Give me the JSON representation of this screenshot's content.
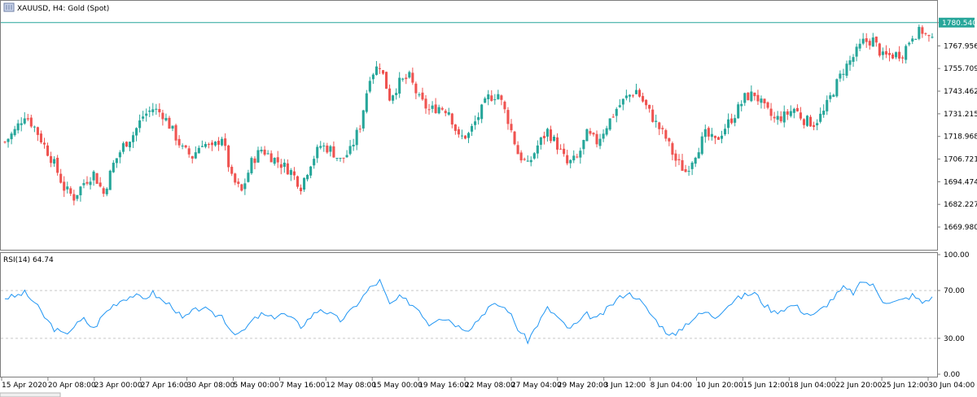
{
  "header": {
    "symbol_title": "XAUUSD, H4:  Gold (Spot)"
  },
  "rsi": {
    "label": "RSI(14) 64.74"
  },
  "colors": {
    "bull": "#26a69a",
    "bear": "#ef5350",
    "rsi_line": "#2196f3",
    "grid_level": "#c8c8c8",
    "current_price": "#26a69a"
  },
  "chart_data": [
    {
      "type": "candlestick",
      "title": "XAUUSD, H4:  Gold (Spot)",
      "ylim": [
        1659.0,
        1791.0
      ],
      "y_ticks": [
        "1780.540",
        "1767.956",
        "1755.709",
        "1743.462",
        "1731.215",
        "1718.968",
        "1706.721",
        "1694.474",
        "1682.227",
        "1669.980"
      ],
      "current_price": "1780.540",
      "x_ticks": [
        "15 Apr 2020",
        "20 Apr 08:00",
        "23 Apr 00:00",
        "27 Apr 16:00",
        "30 Apr 08:00",
        "5 May 00:00",
        "7 May 16:00",
        "12 May 08:00",
        "15 May 00:00",
        "19 May 16:00",
        "22 May 08:00",
        "27 May 04:00",
        "29 May 20:00",
        "3 Jun 12:00",
        "8 Jun 04:00",
        "10 Jun 20:00",
        "15 Jun 12:00",
        "18 Jun 04:00",
        "22 Jun 20:00",
        "25 Jun 12:00",
        "30 Jun 04:00"
      ],
      "close_path": [
        [
          0,
          1716
        ],
        [
          3,
          1722
        ],
        [
          6,
          1731
        ],
        [
          9,
          1724
        ],
        [
          12,
          1714
        ],
        [
          15,
          1704
        ],
        [
          18,
          1691
        ],
        [
          21,
          1686
        ],
        [
          24,
          1694
        ],
        [
          27,
          1699
        ],
        [
          30,
          1688
        ],
        [
          33,
          1704
        ],
        [
          36,
          1714
        ],
        [
          39,
          1720
        ],
        [
          42,
          1730
        ],
        [
          45,
          1734
        ],
        [
          48,
          1731
        ],
        [
          51,
          1722
        ],
        [
          54,
          1712
        ],
        [
          57,
          1708
        ],
        [
          60,
          1716
        ],
        [
          63,
          1712
        ],
        [
          66,
          1719
        ],
        [
          69,
          1696
        ],
        [
          72,
          1689
        ],
        [
          75,
          1705
        ],
        [
          78,
          1712
        ],
        [
          81,
          1708
        ],
        [
          84,
          1704
        ],
        [
          87,
          1700
        ],
        [
          90,
          1692
        ],
        [
          93,
          1705
        ],
        [
          96,
          1714
        ],
        [
          99,
          1712
        ],
        [
          102,
          1706
        ],
        [
          105,
          1711
        ],
        [
          108,
          1725
        ],
        [
          111,
          1752
        ],
        [
          114,
          1758
        ],
        [
          117,
          1740
        ],
        [
          120,
          1748
        ],
        [
          123,
          1751
        ],
        [
          126,
          1739
        ],
        [
          129,
          1733
        ],
        [
          132,
          1735
        ],
        [
          135,
          1733
        ],
        [
          138,
          1718
        ],
        [
          141,
          1720
        ],
        [
          144,
          1730
        ],
        [
          147,
          1740
        ],
        [
          150,
          1742
        ],
        [
          153,
          1728
        ],
        [
          156,
          1710
        ],
        [
          159,
          1703
        ],
        [
          162,
          1714
        ],
        [
          165,
          1722
        ],
        [
          168,
          1714
        ],
        [
          171,
          1704
        ],
        [
          174,
          1707
        ],
        [
          177,
          1720
        ],
        [
          180,
          1716
        ],
        [
          183,
          1725
        ],
        [
          186,
          1734
        ],
        [
          189,
          1740
        ],
        [
          192,
          1744
        ],
        [
          195,
          1735
        ],
        [
          198,
          1726
        ],
        [
          201,
          1718
        ],
        [
          204,
          1706
        ],
        [
          207,
          1700
        ],
        [
          210,
          1710
        ],
        [
          213,
          1720
        ],
        [
          216,
          1716
        ],
        [
          219,
          1724
        ],
        [
          222,
          1731
        ],
        [
          225,
          1740
        ],
        [
          228,
          1742
        ],
        [
          231,
          1734
        ],
        [
          234,
          1728
        ],
        [
          237,
          1730
        ],
        [
          240,
          1734
        ],
        [
          243,
          1728
        ],
        [
          246,
          1726
        ],
        [
          249,
          1732
        ],
        [
          252,
          1744
        ],
        [
          255,
          1755
        ],
        [
          258,
          1762
        ],
        [
          261,
          1770
        ],
        [
          264,
          1771
        ],
        [
          267,
          1762
        ],
        [
          270,
          1763
        ],
        [
          273,
          1764
        ],
        [
          276,
          1774
        ],
        [
          279,
          1776
        ],
        [
          282,
          1770
        ]
      ],
      "rsi": {
        "ylim": [
          0,
          100
        ],
        "levels": [
          30,
          70
        ],
        "y_ticks": [
          "100.00",
          "70.00",
          "30.00",
          "0.00"
        ],
        "last": 64.74,
        "path": [
          [
            0,
            64
          ],
          [
            3,
            65
          ],
          [
            6,
            68
          ],
          [
            9,
            60
          ],
          [
            12,
            48
          ],
          [
            15,
            38
          ],
          [
            18,
            33
          ],
          [
            21,
            40
          ],
          [
            24,
            46
          ],
          [
            27,
            38
          ],
          [
            30,
            50
          ],
          [
            33,
            58
          ],
          [
            36,
            63
          ],
          [
            39,
            66
          ],
          [
            42,
            63
          ],
          [
            45,
            68
          ],
          [
            48,
            61
          ],
          [
            51,
            57
          ],
          [
            54,
            46
          ],
          [
            57,
            52
          ],
          [
            60,
            56
          ],
          [
            63,
            50
          ],
          [
            66,
            49
          ],
          [
            69,
            36
          ],
          [
            72,
            34
          ],
          [
            75,
            44
          ],
          [
            78,
            50
          ],
          [
            81,
            47
          ],
          [
            84,
            51
          ],
          [
            87,
            47
          ],
          [
            90,
            40
          ],
          [
            93,
            48
          ],
          [
            96,
            55
          ],
          [
            99,
            50
          ],
          [
            102,
            45
          ],
          [
            105,
            52
          ],
          [
            108,
            62
          ],
          [
            111,
            72
          ],
          [
            114,
            78
          ],
          [
            117,
            58
          ],
          [
            120,
            64
          ],
          [
            123,
            60
          ],
          [
            126,
            54
          ],
          [
            129,
            42
          ],
          [
            132,
            48
          ],
          [
            135,
            46
          ],
          [
            138,
            40
          ],
          [
            141,
            38
          ],
          [
            144,
            46
          ],
          [
            147,
            56
          ],
          [
            150,
            58
          ],
          [
            153,
            54
          ],
          [
            156,
            38
          ],
          [
            159,
            28
          ],
          [
            162,
            42
          ],
          [
            165,
            55
          ],
          [
            168,
            48
          ],
          [
            171,
            38
          ],
          [
            174,
            42
          ],
          [
            177,
            50
          ],
          [
            180,
            46
          ],
          [
            183,
            54
          ],
          [
            186,
            62
          ],
          [
            189,
            68
          ],
          [
            192,
            65
          ],
          [
            195,
            55
          ],
          [
            198,
            45
          ],
          [
            201,
            36
          ],
          [
            204,
            32
          ],
          [
            207,
            42
          ],
          [
            210,
            48
          ],
          [
            213,
            52
          ],
          [
            216,
            48
          ],
          [
            219,
            56
          ],
          [
            222,
            62
          ],
          [
            225,
            66
          ],
          [
            228,
            68
          ],
          [
            231,
            58
          ],
          [
            234,
            52
          ],
          [
            237,
            55
          ],
          [
            240,
            58
          ],
          [
            243,
            52
          ],
          [
            246,
            49
          ],
          [
            249,
            56
          ],
          [
            252,
            64
          ],
          [
            255,
            72
          ],
          [
            258,
            68
          ],
          [
            261,
            78
          ],
          [
            264,
            74
          ],
          [
            267,
            62
          ],
          [
            270,
            60
          ],
          [
            273,
            62
          ],
          [
            276,
            66
          ],
          [
            279,
            60
          ],
          [
            282,
            64.74
          ]
        ]
      }
    }
  ]
}
